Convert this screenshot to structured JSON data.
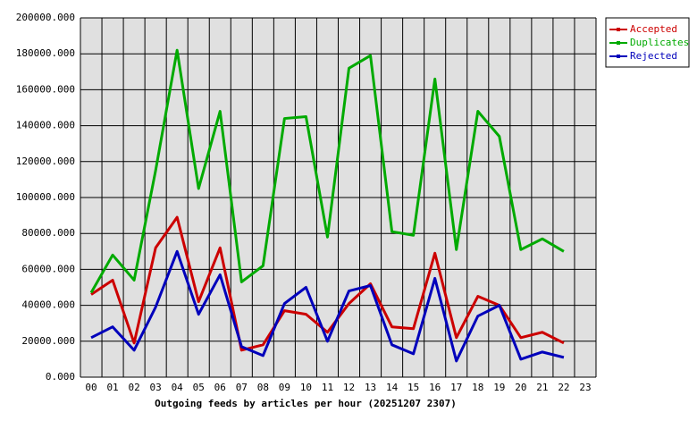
{
  "chart_data": {
    "type": "line",
    "x_label": "Outgoing feeds by articles per hour (20251207 2307)",
    "categories": [
      "00",
      "01",
      "02",
      "03",
      "04",
      "05",
      "06",
      "07",
      "08",
      "09",
      "10",
      "11",
      "12",
      "13",
      "14",
      "15",
      "16",
      "17",
      "18",
      "19",
      "20",
      "21",
      "22",
      "23"
    ],
    "ylim": [
      0,
      200000
    ],
    "yticks": [
      {
        "value": 0,
        "label": "0.000"
      },
      {
        "value": 20000,
        "label": "20000.000"
      },
      {
        "value": 40000,
        "label": "40000.000"
      },
      {
        "value": 60000,
        "label": "60000.000"
      },
      {
        "value": 80000,
        "label": "80000.000"
      },
      {
        "value": 100000,
        "label": "100000.000"
      },
      {
        "value": 120000,
        "label": "120000.000"
      },
      {
        "value": 140000,
        "label": "140000.000"
      },
      {
        "value": 160000,
        "label": "160000.000"
      },
      {
        "value": 180000,
        "label": "180000.000"
      },
      {
        "value": 200000,
        "label": "200000.000"
      }
    ],
    "grid": true,
    "legend": "outside-top-right",
    "series": [
      {
        "name": "Accepted",
        "color": "#cc0000",
        "values": [
          46000,
          54000,
          19000,
          72000,
          89000,
          42000,
          72000,
          15000,
          18000,
          37000,
          35000,
          25000,
          41000,
          52000,
          28000,
          27000,
          69000,
          22000,
          45000,
          40000,
          22000,
          25000,
          19000,
          null
        ]
      },
      {
        "name": "Duplicates",
        "color": "#00aa00",
        "values": [
          47000,
          68000,
          54000,
          115000,
          182000,
          105000,
          148000,
          53000,
          62000,
          144000,
          145000,
          78000,
          172000,
          179000,
          81000,
          79000,
          166000,
          71000,
          148000,
          134000,
          71000,
          77000,
          70000,
          null
        ]
      },
      {
        "name": "Rejected",
        "color": "#0000bb",
        "values": [
          22000,
          28000,
          15000,
          39000,
          70000,
          35000,
          57000,
          17000,
          12000,
          41000,
          50000,
          20000,
          48000,
          51000,
          18000,
          13000,
          55000,
          9000,
          34000,
          40000,
          10000,
          14000,
          11000,
          null
        ]
      }
    ]
  }
}
